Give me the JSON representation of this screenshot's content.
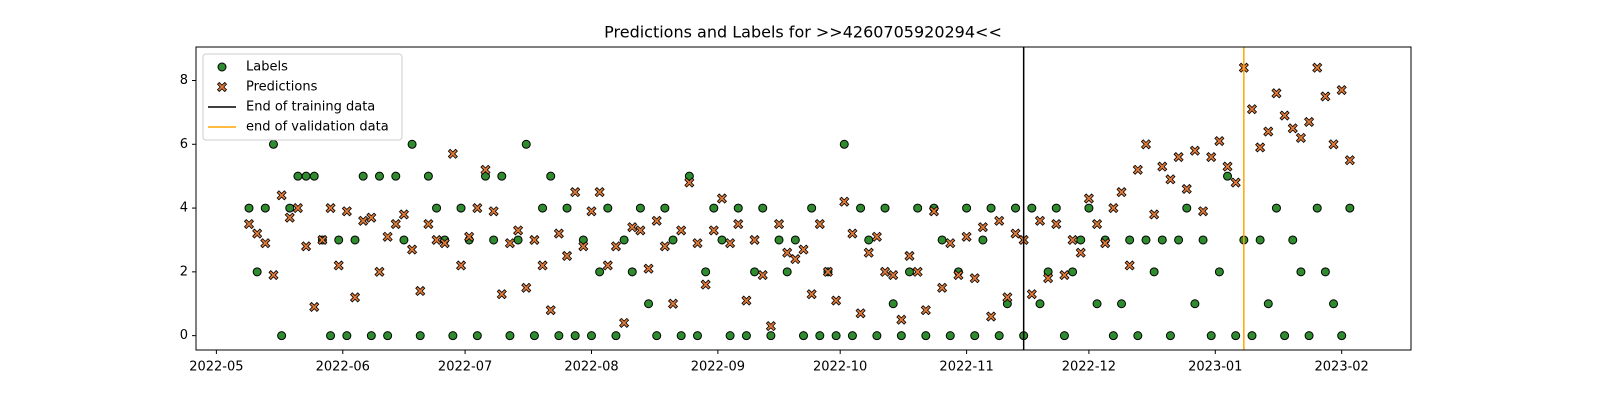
{
  "chart_data": {
    "type": "scatter",
    "title": "Predictions and Labels for >>4260705920294<<",
    "x": [
      "2022-05-09",
      "2022-05-11",
      "2022-05-13",
      "2022-05-15",
      "2022-05-17",
      "2022-05-19",
      "2022-05-21",
      "2022-05-23",
      "2022-05-25",
      "2022-05-27",
      "2022-05-29",
      "2022-05-31",
      "2022-06-02",
      "2022-06-04",
      "2022-06-06",
      "2022-06-08",
      "2022-06-10",
      "2022-06-12",
      "2022-06-14",
      "2022-06-16",
      "2022-06-18",
      "2022-06-20",
      "2022-06-22",
      "2022-06-24",
      "2022-06-26",
      "2022-06-28",
      "2022-06-30",
      "2022-07-02",
      "2022-07-04",
      "2022-07-06",
      "2022-07-08",
      "2022-07-10",
      "2022-07-12",
      "2022-07-14",
      "2022-07-16",
      "2022-07-18",
      "2022-07-20",
      "2022-07-22",
      "2022-07-24",
      "2022-07-26",
      "2022-07-28",
      "2022-07-30",
      "2022-08-01",
      "2022-08-03",
      "2022-08-05",
      "2022-08-07",
      "2022-08-09",
      "2022-08-11",
      "2022-08-13",
      "2022-08-15",
      "2022-08-17",
      "2022-08-19",
      "2022-08-21",
      "2022-08-23",
      "2022-08-25",
      "2022-08-27",
      "2022-08-29",
      "2022-08-31",
      "2022-09-02",
      "2022-09-04",
      "2022-09-06",
      "2022-09-08",
      "2022-09-10",
      "2022-09-12",
      "2022-09-14",
      "2022-09-16",
      "2022-09-18",
      "2022-09-20",
      "2022-09-22",
      "2022-09-24",
      "2022-09-26",
      "2022-09-28",
      "2022-09-30",
      "2022-10-02",
      "2022-10-04",
      "2022-10-06",
      "2022-10-08",
      "2022-10-10",
      "2022-10-12",
      "2022-10-14",
      "2022-10-16",
      "2022-10-18",
      "2022-10-20",
      "2022-10-22",
      "2022-10-24",
      "2022-10-26",
      "2022-10-28",
      "2022-10-30",
      "2022-11-01",
      "2022-11-03",
      "2022-11-05",
      "2022-11-07",
      "2022-11-09",
      "2022-11-11",
      "2022-11-13",
      "2022-11-15",
      "2022-11-17",
      "2022-11-19",
      "2022-11-21",
      "2022-11-23",
      "2022-11-25",
      "2022-11-27",
      "2022-11-29",
      "2022-12-01",
      "2022-12-03",
      "2022-12-05",
      "2022-12-07",
      "2022-12-09",
      "2022-12-11",
      "2022-12-13",
      "2022-12-15",
      "2022-12-17",
      "2022-12-19",
      "2022-12-21",
      "2022-12-23",
      "2022-12-25",
      "2022-12-27",
      "2022-12-29",
      "2022-12-31",
      "2023-01-02",
      "2023-01-04",
      "2023-01-06",
      "2023-01-08",
      "2023-01-10",
      "2023-01-12",
      "2023-01-14",
      "2023-01-16",
      "2023-01-18",
      "2023-01-20",
      "2023-01-22",
      "2023-01-24",
      "2023-01-26",
      "2023-01-28",
      "2023-01-30",
      "2023-02-01",
      "2023-02-03"
    ],
    "series": [
      {
        "name": "Labels",
        "color": "#2e8b2e",
        "marker": "o",
        "values": [
          4,
          2,
          4,
          6,
          0,
          4,
          5,
          5,
          5,
          3,
          0,
          3,
          0,
          3,
          5,
          0,
          5,
          0,
          5,
          3,
          6,
          0,
          5,
          4,
          3,
          0,
          4,
          3,
          0,
          5,
          3,
          5,
          0,
          3,
          6,
          0,
          4,
          5,
          0,
          4,
          0,
          3,
          0,
          2,
          4,
          0,
          3,
          2,
          4,
          1,
          0,
          4,
          3,
          0,
          5,
          0,
          2,
          4,
          3,
          0,
          4,
          0,
          2,
          4,
          0,
          3,
          2,
          3,
          0,
          4,
          0,
          2,
          0,
          6,
          0,
          4,
          3,
          0,
          4,
          1,
          0,
          2,
          4,
          0,
          4,
          3,
          0,
          2,
          4,
          0,
          3,
          4,
          0,
          1,
          4,
          0,
          4,
          1,
          2,
          4,
          0,
          2,
          3,
          4,
          1,
          3,
          0,
          1,
          3,
          0,
          3,
          2,
          3,
          0,
          3,
          4,
          1,
          3,
          0,
          2,
          5,
          0,
          3,
          0,
          3,
          1,
          4,
          0,
          3,
          2,
          0,
          4,
          2,
          1,
          0,
          4
        ]
      },
      {
        "name": "Predictions",
        "color": "#e07b39",
        "marker": "x",
        "values": [
          3.5,
          3.2,
          2.9,
          1.9,
          4.4,
          3.7,
          4.0,
          2.8,
          0.9,
          3.0,
          4.0,
          2.2,
          3.9,
          1.2,
          3.6,
          3.7,
          2.0,
          3.1,
          3.5,
          3.8,
          2.7,
          1.4,
          3.5,
          3.0,
          2.9,
          5.7,
          2.2,
          3.1,
          4.0,
          5.2,
          3.9,
          1.3,
          2.9,
          3.3,
          1.5,
          3.0,
          2.2,
          0.8,
          3.2,
          2.5,
          4.5,
          2.8,
          3.9,
          4.5,
          2.2,
          2.8,
          0.4,
          3.4,
          3.3,
          2.1,
          3.6,
          2.8,
          1.0,
          3.3,
          4.8,
          2.9,
          1.6,
          3.3,
          4.3,
          2.9,
          3.5,
          1.1,
          3.0,
          1.9,
          0.3,
          3.5,
          2.6,
          2.4,
          2.7,
          1.3,
          3.5,
          2.0,
          1.1,
          4.2,
          3.2,
          0.7,
          2.6,
          3.1,
          2.0,
          1.9,
          0.5,
          2.5,
          2.0,
          0.8,
          3.9,
          1.5,
          2.9,
          1.9,
          3.1,
          1.8,
          3.4,
          0.6,
          3.6,
          1.2,
          3.2,
          3.0,
          1.3,
          3.6,
          1.8,
          3.5,
          1.9,
          3.0,
          2.6,
          4.3,
          3.5,
          2.9,
          4.0,
          4.5,
          2.2,
          5.2,
          6.0,
          3.8,
          5.3,
          4.9,
          5.6,
          4.6,
          5.8,
          3.9,
          5.6,
          6.1,
          5.3,
          4.8,
          8.4,
          7.1,
          5.9,
          6.4,
          7.6,
          6.9,
          6.5,
          6.2,
          6.7,
          8.4,
          7.5,
          6.0,
          7.7,
          5.5
        ]
      }
    ],
    "vlines": [
      {
        "name": "End of training data",
        "x": "2022-11-15",
        "color": "#000000"
      },
      {
        "name": "end of validation data",
        "x": "2023-01-08",
        "color": "#ffa500"
      }
    ],
    "xlim": [
      "2022-04-26",
      "2023-02-18"
    ],
    "xticks": [
      {
        "value": "2022-05-01",
        "label": "2022-05"
      },
      {
        "value": "2022-06-01",
        "label": "2022-06"
      },
      {
        "value": "2022-07-01",
        "label": "2022-07"
      },
      {
        "value": "2022-08-01",
        "label": "2022-08"
      },
      {
        "value": "2022-09-01",
        "label": "2022-09"
      },
      {
        "value": "2022-10-01",
        "label": "2022-10"
      },
      {
        "value": "2022-11-01",
        "label": "2022-11"
      },
      {
        "value": "2022-12-01",
        "label": "2022-12"
      },
      {
        "value": "2023-01-01",
        "label": "2023-01"
      },
      {
        "value": "2023-02-01",
        "label": "2023-02"
      }
    ],
    "ylim": [
      -0.45,
      9.05
    ],
    "yticks": [
      0,
      2,
      4,
      6,
      8
    ],
    "legend": "upper left"
  }
}
